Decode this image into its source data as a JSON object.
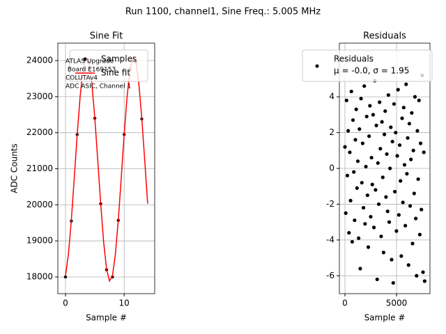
{
  "title": "Run 1100, channel1, Sine Freq.: 5.005 MHz",
  "chart_data": [
    {
      "type": "scatter",
      "title": "Sine Fit",
      "xlabel": "Sample #",
      "ylabel": "ADC Counts",
      "xlim": [
        -1.3,
        15.2
      ],
      "ylim": [
        17537,
        24483
      ],
      "xticks": [
        0,
        10
      ],
      "yticks": [
        18000,
        19000,
        20000,
        21000,
        22000,
        23000,
        24000
      ],
      "grid": true,
      "legend": "upper right",
      "annotation": [
        "ATLAS Upgrade",
        " Board E169153",
        "COLUTAv4",
        "ADC ASIC, Channel 1"
      ],
      "series": [
        {
          "name": "Samples",
          "type": "scatter",
          "color": "#000000",
          "x": [
            0,
            1,
            2,
            3,
            4,
            5,
            6,
            7,
            8,
            9,
            10,
            11,
            12,
            13
          ],
          "values": [
            18000,
            19550,
            21950,
            23780,
            23950,
            22400,
            20030,
            18200,
            18000,
            19570,
            21950,
            23760,
            23960,
            22380
          ]
        },
        {
          "name": "Sine fit",
          "type": "line",
          "color": "#ff0000",
          "x": [
            0,
            0.5,
            1,
            1.5,
            2,
            2.5,
            3,
            3.5,
            4,
            4.5,
            5,
            5.5,
            6,
            6.5,
            7,
            7.5,
            8,
            8.5,
            9,
            9.5,
            10,
            10.5,
            11,
            11.5,
            12,
            12.5,
            13,
            13.5,
            14
          ],
          "values": [
            18032,
            18626,
            19578,
            20747,
            21951,
            23008,
            23761,
            24091,
            23948,
            23354,
            22402,
            21233,
            20029,
            18972,
            18219,
            17889,
            18032,
            18626,
            19578,
            20747,
            21951,
            23008,
            23761,
            24091,
            23948,
            23354,
            22402,
            21233,
            20029
          ]
        }
      ]
    },
    {
      "type": "scatter",
      "title": "Residuals",
      "xlabel": "Sample #",
      "xlim": [
        -540,
        8240
      ],
      "ylim": [
        -7,
        7
      ],
      "xticks": [
        0,
        5000
      ],
      "yticks": [
        -6,
        -4,
        -2,
        0,
        2,
        4
      ],
      "grid": true,
      "legend": "upper right",
      "legend_text": "μ = -0.0, σ = 1.95",
      "series": [
        {
          "name": "Residuals",
          "type": "scatter",
          "color": "#000000",
          "x": [
            0,
            78,
            156,
            234,
            312,
            390,
            468,
            546,
            624,
            702,
            780,
            858,
            936,
            1014,
            1092,
            1170,
            1248,
            1326,
            1404,
            1482,
            1560,
            1638,
            1716,
            1794,
            1872,
            1950,
            2028,
            2106,
            2184,
            2262,
            2340,
            2418,
            2496,
            2574,
            2652,
            2730,
            2808,
            2886,
            2964,
            3042,
            3120,
            3198,
            3276,
            3354,
            3432,
            3510,
            3588,
            3666,
            3744,
            3822,
            3900,
            3978,
            4056,
            4134,
            4212,
            4290,
            4368,
            4446,
            4524,
            4602,
            4680,
            4758,
            4836,
            4914,
            4992,
            5070,
            5148,
            5226,
            5304,
            5382,
            5460,
            5538,
            5616,
            5694,
            5772,
            5850,
            5928,
            6006,
            6084,
            6162,
            6240,
            6318,
            6396,
            6474,
            6552,
            6630,
            6708,
            6786,
            6864,
            6942,
            7020,
            7098,
            7176,
            7254,
            7332,
            7410,
            7488,
            7566,
            7644,
            7722
          ],
          "values": [
            1.2,
            -2.5,
            3.8,
            -0.4,
            2.1,
            -3.6,
            0.9,
            -1.8,
            4.3,
            -4.1,
            2.7,
            -0.2,
            -2.9,
            1.6,
            3.3,
            -1.1,
            0.4,
            -3.9,
            2.2,
            -5.6,
            3.9,
            -0.8,
            1.4,
            -2.2,
            4.6,
            -3.1,
            0.1,
            2.9,
            -1.5,
            -4.4,
            1.8,
            3.5,
            -2.7,
            0.6,
            -0.9,
            3.0,
            -3.3,
            4.9,
            -1.2,
            2.4,
            -6.2,
            0.3,
            -2.0,
            3.7,
            1.1,
            -3.8,
            2.6,
            -0.5,
            -4.7,
            1.9,
            3.2,
            -1.6,
            0.8,
            -2.4,
            4.1,
            -3.0,
            0.0,
            2.3,
            -5.1,
            1.5,
            -6.4,
            3.6,
            -1.3,
            2.0,
            -3.5,
            0.7,
            4.4,
            -2.6,
            1.3,
            -0.7,
            -4.9,
            2.8,
            -1.9,
            3.4,
            0.2,
            -3.2,
            4.7,
            -0.3,
            1.7,
            -5.4,
            2.5,
            -2.1,
            0.5,
            3.1,
            -4.2,
            1.0,
            -1.4,
            4.0,
            -2.8,
            -6.0,
            2.1,
            -0.6,
            3.8,
            -3.7,
            1.4,
            -2.3,
            5.2,
            -5.8,
            0.9,
            -6.3
          ]
        }
      ]
    }
  ]
}
